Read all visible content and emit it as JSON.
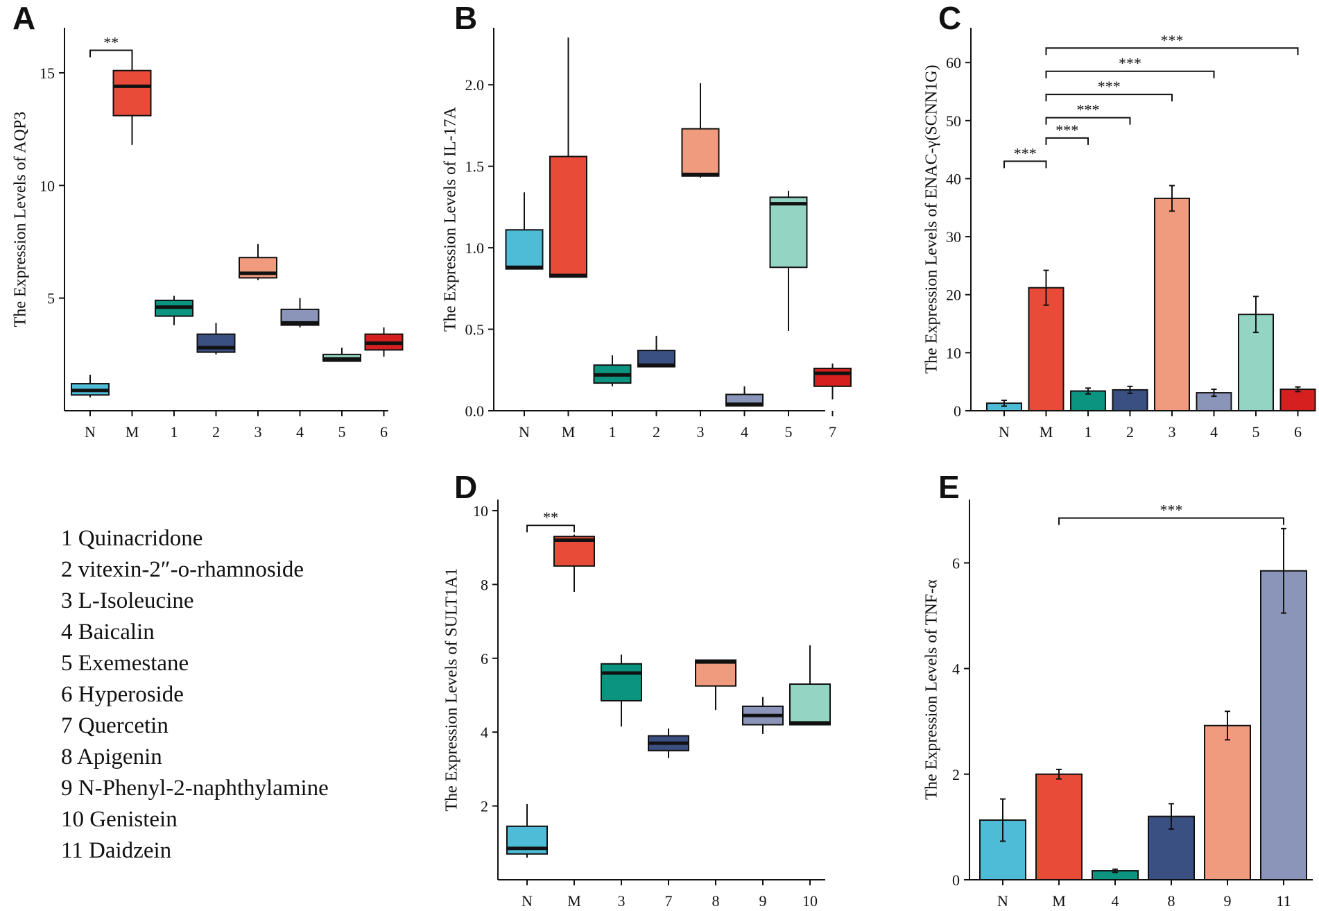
{
  "colors": {
    "N": "#4ebcd6",
    "M": "#e84c39",
    "c1": "#0b9580",
    "c2": "#3a4f82",
    "c3": "#f09b7e",
    "c4": "#8a95b9",
    "c5": "#93d4c2",
    "c6": "#d61f1f",
    "axis": "#111111"
  },
  "legend": {
    "items": [
      "1 Quinacridone",
      "2 vitexin-2″-o-rhamnoside",
      "3 L-Isoleucine",
      "4 Baicalin",
      "5 Exemestane",
      "6 Hyperoside",
      "7 Quercetin",
      "8 Apigenin",
      "9 N-Phenyl-2-naphthylamine",
      "10 Genistein",
      "11 Daidzein"
    ]
  },
  "chart_data": [
    {
      "panel": "A",
      "type": "box",
      "ylabel": "The Expression Levels of AQP3",
      "categories": [
        "N",
        "M",
        "1",
        "2",
        "3",
        "4",
        "5",
        "6"
      ],
      "yticks": [
        5,
        10,
        15
      ],
      "ylim": [
        0,
        17
      ],
      "boxes": [
        {
          "min": 0.6,
          "q1": 0.7,
          "median": 0.9,
          "q3": 1.2,
          "max": 1.6,
          "color": "N"
        },
        {
          "min": 11.8,
          "q1": 13.1,
          "median": 14.4,
          "q3": 15.1,
          "max": 15.8,
          "color": "M"
        },
        {
          "min": 3.8,
          "q1": 4.2,
          "median": 4.6,
          "q3": 4.9,
          "max": 5.1,
          "color": "c1"
        },
        {
          "min": 2.5,
          "q1": 2.6,
          "median": 2.8,
          "q3": 3.4,
          "max": 3.9,
          "color": "c2"
        },
        {
          "min": 5.8,
          "q1": 5.9,
          "median": 6.1,
          "q3": 6.8,
          "max": 7.4,
          "color": "c3"
        },
        {
          "min": 3.7,
          "q1": 3.8,
          "median": 3.9,
          "q3": 4.5,
          "max": 5.0,
          "color": "c4"
        },
        {
          "min": 2.2,
          "q1": 2.2,
          "median": 2.3,
          "q3": 2.5,
          "max": 2.8,
          "color": "c5"
        },
        {
          "min": 2.4,
          "q1": 2.7,
          "median": 3.0,
          "q3": 3.4,
          "max": 3.7,
          "color": "c6"
        }
      ],
      "significance": [
        {
          "from": 0,
          "to": 1,
          "label": "**",
          "y": 16.0
        }
      ]
    },
    {
      "panel": "B",
      "type": "box",
      "ylabel": "The Expression Levels of IL-17A",
      "categories": [
        "N",
        "M",
        "1",
        "2",
        "3",
        "4",
        "5",
        "7"
      ],
      "yticks": [
        0.0,
        0.5,
        1.0,
        1.5,
        2.0
      ],
      "ytick_labels": [
        "0.0",
        "0.5",
        "1.0",
        "1.5",
        "2.0"
      ],
      "ylim": [
        0,
        2.35
      ],
      "boxes": [
        {
          "min": 0.87,
          "q1": 0.87,
          "median": 0.88,
          "q3": 1.11,
          "max": 1.34,
          "color": "N"
        },
        {
          "min": 0.82,
          "q1": 0.82,
          "median": 0.83,
          "q3": 1.56,
          "max": 2.29,
          "color": "M"
        },
        {
          "min": 0.15,
          "q1": 0.17,
          "median": 0.22,
          "q3": 0.28,
          "max": 0.34,
          "color": "c1"
        },
        {
          "min": 0.27,
          "q1": 0.27,
          "median": 0.28,
          "q3": 0.37,
          "max": 0.46,
          "color": "c2"
        },
        {
          "min": 1.43,
          "q1": 1.44,
          "median": 1.45,
          "q3": 1.73,
          "max": 2.01,
          "color": "c3"
        },
        {
          "min": 0.03,
          "q1": 0.03,
          "median": 0.04,
          "q3": 0.1,
          "max": 0.15,
          "color": "c4"
        },
        {
          "min": 0.49,
          "q1": 0.88,
          "median": 1.27,
          "q3": 1.31,
          "max": 1.35,
          "color": "c5"
        },
        {
          "min": 0.07,
          "q1": 0.15,
          "median": 0.23,
          "q3": 0.26,
          "max": 0.29,
          "color": "c6"
        }
      ],
      "significance": []
    },
    {
      "panel": "C",
      "type": "bar",
      "ylabel": "The Expression Levels of ENAC-γ(SCNN1G)",
      "categories": [
        "N",
        "M",
        "1",
        "2",
        "3",
        "4",
        "5",
        "6"
      ],
      "values": [
        1.3,
        21.2,
        3.4,
        3.6,
        36.6,
        3.1,
        16.6,
        3.7
      ],
      "errors": [
        0.5,
        3.0,
        0.5,
        0.6,
        2.2,
        0.6,
        3.1,
        0.4
      ],
      "bar_colors": [
        "N",
        "M",
        "c1",
        "c2",
        "c3",
        "c4",
        "c5",
        "c6"
      ],
      "yticks": [
        0,
        10,
        20,
        30,
        40,
        50,
        60
      ],
      "ylim": [
        0,
        66
      ],
      "significance": [
        {
          "from": 0,
          "to": 1,
          "label": "***",
          "y": 43
        },
        {
          "from": 1,
          "to": 2,
          "label": "***",
          "y": 47
        },
        {
          "from": 1,
          "to": 3,
          "label": "***",
          "y": 50.5
        },
        {
          "from": 1,
          "to": 4,
          "label": "***",
          "y": 54.5
        },
        {
          "from": 1,
          "to": 5,
          "label": "***",
          "y": 58.5
        },
        {
          "from": 1,
          "to": 7,
          "label": "***",
          "y": 62.5
        }
      ]
    },
    {
      "panel": "D",
      "type": "box",
      "ylabel": "The Expression Levels of SULT1A1",
      "categories": [
        "N",
        "M",
        "3",
        "7",
        "8",
        "9",
        "10"
      ],
      "yticks": [
        2,
        4,
        6,
        8,
        10
      ],
      "ylim": [
        0,
        10.3
      ],
      "boxes": [
        {
          "min": 0.6,
          "q1": 0.7,
          "median": 0.85,
          "q3": 1.45,
          "max": 2.05,
          "color": "N"
        },
        {
          "min": 7.8,
          "q1": 8.5,
          "median": 9.2,
          "q3": 9.3,
          "max": 9.35,
          "color": "M"
        },
        {
          "min": 4.15,
          "q1": 4.85,
          "median": 5.6,
          "q3": 5.85,
          "max": 6.1,
          "color": "c1"
        },
        {
          "min": 3.3,
          "q1": 3.5,
          "median": 3.7,
          "q3": 3.9,
          "max": 4.1,
          "color": "c2"
        },
        {
          "min": 4.6,
          "q1": 5.25,
          "median": 5.9,
          "q3": 5.95,
          "max": 5.95,
          "color": "c3"
        },
        {
          "min": 3.95,
          "q1": 4.2,
          "median": 4.45,
          "q3": 4.7,
          "max": 4.95,
          "color": "c4"
        },
        {
          "min": 4.2,
          "q1": 4.2,
          "median": 4.25,
          "q3": 5.3,
          "max": 6.35,
          "color": "c5"
        }
      ],
      "significance": [
        {
          "from": 0,
          "to": 1,
          "label": "**",
          "y": 9.6
        }
      ]
    },
    {
      "panel": "E",
      "type": "bar",
      "ylabel": "The Expression Levels of TNF-α",
      "categories": [
        "N",
        "M",
        "4",
        "8",
        "9",
        "11"
      ],
      "values": [
        1.13,
        2.0,
        0.17,
        1.2,
        2.92,
        5.85
      ],
      "errors": [
        0.4,
        0.09,
        0.03,
        0.24,
        0.27,
        0.8
      ],
      "bar_colors": [
        "N",
        "M",
        "c1",
        "c2",
        "c3",
        "c4"
      ],
      "yticks": [
        0,
        2,
        4,
        6
      ],
      "ylim": [
        0,
        7.2
      ],
      "significance": [
        {
          "from": 1,
          "to": 5,
          "label": "***",
          "y": 6.85
        }
      ]
    }
  ]
}
